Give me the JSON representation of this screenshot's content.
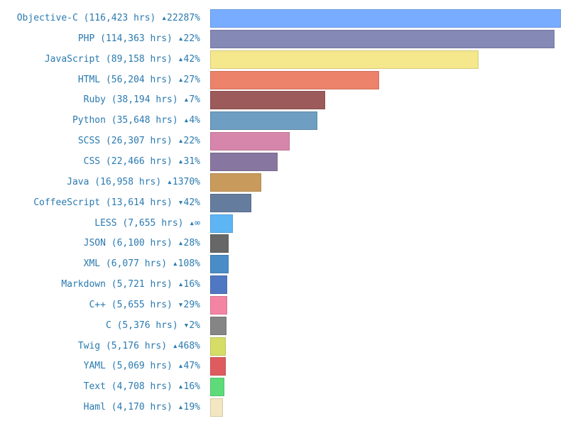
{
  "chart_data": {
    "type": "bar",
    "orientation": "horizontal",
    "title": "",
    "xlabel": "",
    "ylabel": "",
    "grid": false,
    "legend": "none",
    "xlim": [
      0,
      116423
    ],
    "categories": [
      "Objective-C",
      "PHP",
      "JavaScript",
      "HTML",
      "Ruby",
      "Python",
      "SCSS",
      "CSS",
      "Java",
      "CoffeeScript",
      "LESS",
      "JSON",
      "XML",
      "Markdown",
      "C++",
      "C",
      "Twig",
      "YAML",
      "Text",
      "Haml"
    ],
    "values": [
      116423,
      114363,
      89158,
      56204,
      38194,
      35648,
      26307,
      22466,
      16958,
      13614,
      7655,
      6100,
      6077,
      5721,
      5655,
      5376,
      5176,
      5069,
      4708,
      4170
    ],
    "units": "hrs",
    "change": [
      "▴22287%",
      "▴22%",
      "▴42%",
      "▴27%",
      "▴7%",
      "▴4%",
      "▴22%",
      "▴31%",
      "▴1370%",
      "▾42%",
      "▴∞",
      "▴28%",
      "▴108%",
      "▴16%",
      "▾29%",
      "▾2%",
      "▴468%",
      "▴47%",
      "▴16%",
      "▴19%"
    ]
  },
  "rows": [
    {
      "label": "Objective-C (116,423 hrs) ▴22287%",
      "value": 116423,
      "color": "#78acff"
    },
    {
      "label": "PHP (114,363 hrs) ▴22%",
      "value": 114363,
      "color": "#8489b5"
    },
    {
      "label": "JavaScript (89,158 hrs) ▴42%",
      "value": 89158,
      "color": "#f4e78c"
    },
    {
      "label": "HTML (56,204 hrs) ▴27%",
      "value": 56204,
      "color": "#ec826a"
    },
    {
      "label": "Ruby (38,194 hrs) ▴7%",
      "value": 38194,
      "color": "#9c5a5a"
    },
    {
      "label": "Python (35,648 hrs) ▴4%",
      "value": 35648,
      "color": "#6e9ec2"
    },
    {
      "label": "SCSS (26,307 hrs) ▴22%",
      "value": 26307,
      "color": "#d786ab"
    },
    {
      "label": "CSS (22,466 hrs) ▴31%",
      "value": 22466,
      "color": "#8777a0"
    },
    {
      "label": "Java (16,958 hrs) ▴1370%",
      "value": 16958,
      "color": "#c89b5c"
    },
    {
      "label": "CoffeeScript (13,614 hrs) ▾42%",
      "value": 13614,
      "color": "#647c9e"
    },
    {
      "label": "LESS (7,655 hrs) ▴∞",
      "value": 7655,
      "color": "#5db5f4"
    },
    {
      "label": "JSON (6,100 hrs) ▴28%",
      "value": 6100,
      "color": "#676767"
    },
    {
      "label": "XML (6,077 hrs) ▴108%",
      "value": 6077,
      "color": "#4a8cc8"
    },
    {
      "label": "Markdown (5,721 hrs) ▴16%",
      "value": 5721,
      "color": "#5078c2"
    },
    {
      "label": "C++ (5,655 hrs) ▾29%",
      "value": 5655,
      "color": "#f484a3"
    },
    {
      "label": "C (5,376 hrs) ▾2%",
      "value": 5376,
      "color": "#858585"
    },
    {
      "label": "Twig (5,176 hrs) ▴468%",
      "value": 5176,
      "color": "#d6dd66"
    },
    {
      "label": "YAML (5,069 hrs) ▴47%",
      "value": 5069,
      "color": "#de5c5f"
    },
    {
      "label": "Text (4,708 hrs) ▴16%",
      "value": 4708,
      "color": "#5ddb79"
    },
    {
      "label": "Haml (4,170 hrs) ▴19%",
      "value": 4170,
      "color": "#f2e7c0"
    }
  ]
}
